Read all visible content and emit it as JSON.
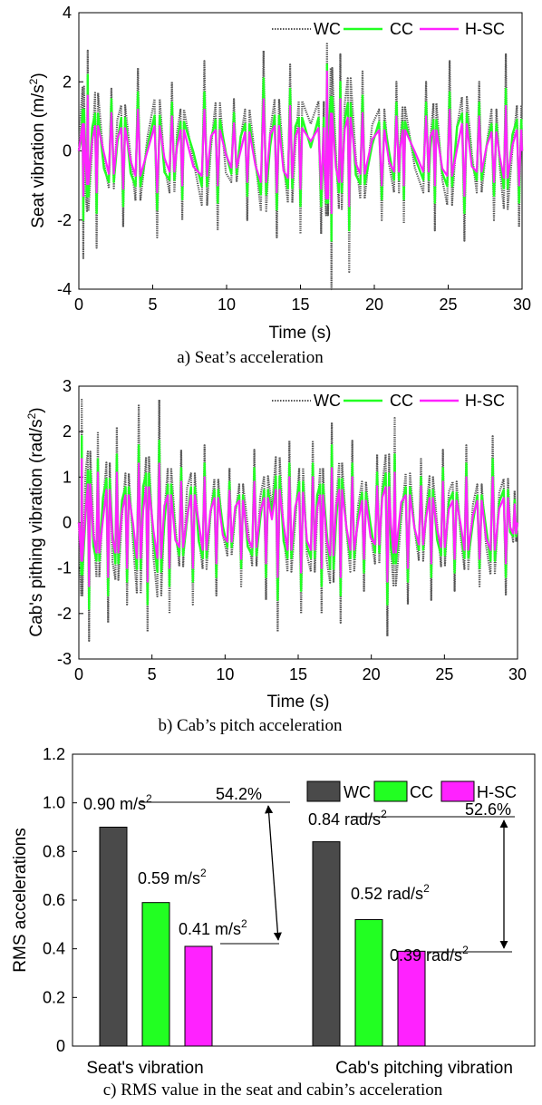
{
  "legend": [
    "WC",
    "CC",
    "H-SC"
  ],
  "colors": {
    "WC": "#555555",
    "CC": "#22ff22",
    "H-SC": "#ff22ff",
    "bar_WC": "#4a4a4a"
  },
  "chart_data": [
    {
      "type": "line",
      "caption": "a) Seat’s acceleration",
      "xlabel": "Time (s)",
      "ylabel": "Seat vibration (m/s",
      "ylabel_sup": "2",
      "ylabel_close": ")",
      "xlim": [
        0,
        30
      ],
      "ylim": [
        -4,
        4
      ],
      "xticks": [
        "0",
        "5",
        "10",
        "15",
        "20",
        "25",
        "30"
      ],
      "yticks": [
        "-4",
        "-2",
        "0",
        "2",
        "4"
      ],
      "series": [
        {
          "name": "WC",
          "peaks": [
            [
              0.3,
              -3.1
            ],
            [
              0.6,
              2.9
            ],
            [
              1.2,
              -2.8
            ],
            [
              2.2,
              1.8
            ],
            [
              3.0,
              -2.2
            ],
            [
              4.0,
              2.4
            ],
            [
              5.3,
              -2.5
            ],
            [
              6.3,
              2.0
            ],
            [
              7.0,
              -2.0
            ],
            [
              8.5,
              2.6
            ],
            [
              9.4,
              -2.3
            ],
            [
              10.5,
              1.5
            ],
            [
              11.4,
              -2.0
            ],
            [
              12.5,
              2.9
            ],
            [
              13.4,
              -2.5
            ],
            [
              14.3,
              2.5
            ],
            [
              15.0,
              -2.4
            ],
            [
              16.4,
              -2.4
            ],
            [
              16.8,
              3.1
            ],
            [
              17.1,
              -4.0
            ],
            [
              17.7,
              2.8
            ],
            [
              18.3,
              -3.5
            ],
            [
              19.2,
              2.3
            ],
            [
              20.5,
              -2.0
            ],
            [
              21.5,
              2.0
            ],
            [
              22.0,
              -2.1
            ],
            [
              23.5,
              2.0
            ],
            [
              24.1,
              -2.3
            ],
            [
              25.1,
              2.6
            ],
            [
              26.1,
              -2.6
            ],
            [
              27.1,
              2.0
            ],
            [
              28.1,
              -2.0
            ],
            [
              28.9,
              2.8
            ],
            [
              29.8,
              -2.2
            ]
          ]
        },
        {
          "name": "CC",
          "peaks": [
            [
              0.3,
              -2.0
            ],
            [
              0.6,
              2.2
            ],
            [
              1.2,
              -1.8
            ],
            [
              2.2,
              1.5
            ],
            [
              3.0,
              -1.6
            ],
            [
              4.0,
              1.7
            ],
            [
              5.3,
              -1.7
            ],
            [
              6.3,
              1.4
            ],
            [
              7.0,
              -1.4
            ],
            [
              8.5,
              1.7
            ],
            [
              9.4,
              -1.5
            ],
            [
              10.5,
              1.1
            ],
            [
              11.4,
              -1.3
            ],
            [
              12.5,
              2.1
            ],
            [
              13.4,
              -1.7
            ],
            [
              14.3,
              1.8
            ],
            [
              15.0,
              -1.6
            ],
            [
              16.4,
              -1.6
            ],
            [
              16.8,
              2.5
            ],
            [
              17.1,
              -2.6
            ],
            [
              17.7,
              2.0
            ],
            [
              18.3,
              -2.3
            ],
            [
              19.2,
              1.6
            ],
            [
              20.5,
              -1.4
            ],
            [
              21.5,
              1.4
            ],
            [
              22.0,
              -1.4
            ],
            [
              23.5,
              1.4
            ],
            [
              24.1,
              -1.5
            ],
            [
              25.1,
              1.7
            ],
            [
              26.1,
              -1.8
            ],
            [
              27.1,
              1.4
            ],
            [
              28.1,
              -1.3
            ],
            [
              28.9,
              1.8
            ],
            [
              29.8,
              -1.5
            ]
          ]
        },
        {
          "name": "H-SC",
          "peaks": [
            [
              0.3,
              -1.3
            ],
            [
              0.6,
              1.6
            ],
            [
              1.2,
              -1.2
            ],
            [
              2.2,
              1.1
            ],
            [
              3.0,
              -1.1
            ],
            [
              4.0,
              1.2
            ],
            [
              5.3,
              -1.2
            ],
            [
              6.3,
              1.0
            ],
            [
              7.0,
              -1.0
            ],
            [
              8.5,
              1.2
            ],
            [
              9.4,
              -1.0
            ],
            [
              10.5,
              0.8
            ],
            [
              11.4,
              -0.9
            ],
            [
              12.5,
              1.5
            ],
            [
              13.4,
              -1.2
            ],
            [
              14.3,
              1.3
            ],
            [
              15.0,
              -1.1
            ],
            [
              16.4,
              -1.1
            ],
            [
              16.8,
              2.3
            ],
            [
              17.1,
              -1.8
            ],
            [
              17.7,
              1.5
            ],
            [
              18.3,
              -1.6
            ],
            [
              19.2,
              1.1
            ],
            [
              20.5,
              -1.0
            ],
            [
              21.5,
              1.0
            ],
            [
              22.0,
              -1.0
            ],
            [
              23.5,
              1.0
            ],
            [
              24.1,
              -1.0
            ],
            [
              25.1,
              1.2
            ],
            [
              26.1,
              -1.3
            ],
            [
              27.1,
              1.0
            ],
            [
              28.1,
              -0.9
            ],
            [
              28.9,
              1.3
            ],
            [
              29.8,
              -1.0
            ]
          ]
        }
      ]
    },
    {
      "type": "line",
      "caption": "b) Cab’s pitch acceleration",
      "xlabel": "Time (s)",
      "ylabel": "Cab's pithing vibration (rad/s",
      "ylabel_sup": "2",
      "ylabel_close": ")",
      "xlim": [
        0,
        30
      ],
      "ylim": [
        -3,
        3
      ],
      "xticks": [
        "0",
        "5",
        "10",
        "15",
        "20",
        "25",
        "30"
      ],
      "yticks": [
        "-3",
        "-2",
        "-1",
        "0",
        "1",
        "2",
        "3"
      ],
      "series": [
        {
          "name": "WC",
          "peaks": [
            [
              0.2,
              2.7
            ],
            [
              0.7,
              -2.6
            ],
            [
              1.3,
              2.0
            ],
            [
              2.0,
              -2.2
            ],
            [
              2.6,
              2.1
            ],
            [
              3.3,
              -1.8
            ],
            [
              4.1,
              2.6
            ],
            [
              4.7,
              -2.4
            ],
            [
              5.5,
              2.7
            ],
            [
              6.2,
              -2.0
            ],
            [
              7.0,
              1.6
            ],
            [
              7.8,
              -1.8
            ],
            [
              8.6,
              1.7
            ],
            [
              9.4,
              -1.6
            ],
            [
              10.3,
              1.2
            ],
            [
              11.1,
              -1.4
            ],
            [
              12.0,
              1.6
            ],
            [
              12.8,
              -1.7
            ],
            [
              13.6,
              -2.4
            ],
            [
              14.4,
              1.8
            ],
            [
              15.2,
              -2.0
            ],
            [
              16.0,
              1.8
            ],
            [
              16.6,
              -2.0
            ],
            [
              17.3,
              2.2
            ],
            [
              17.9,
              -2.2
            ],
            [
              18.7,
              1.8
            ],
            [
              19.5,
              -1.5
            ],
            [
              20.4,
              1.5
            ],
            [
              21.1,
              -2.5
            ],
            [
              21.6,
              2.3
            ],
            [
              22.5,
              -1.8
            ],
            [
              23.4,
              1.4
            ],
            [
              24.1,
              -1.7
            ],
            [
              24.9,
              1.6
            ],
            [
              25.7,
              -1.5
            ],
            [
              26.5,
              1.7
            ],
            [
              27.4,
              -1.4
            ],
            [
              28.3,
              1.9
            ],
            [
              29.2,
              -1.6
            ],
            [
              29.8,
              0.7
            ]
          ]
        },
        {
          "name": "CC",
          "peaks": [
            [
              0.2,
              1.9
            ],
            [
              0.7,
              -1.9
            ],
            [
              1.3,
              1.4
            ],
            [
              2.0,
              -1.6
            ],
            [
              2.6,
              1.5
            ],
            [
              3.3,
              -1.3
            ],
            [
              4.1,
              1.7
            ],
            [
              4.7,
              -1.8
            ],
            [
              5.5,
              1.8
            ],
            [
              6.2,
              -1.4
            ],
            [
              7.0,
              1.2
            ],
            [
              7.8,
              -1.3
            ],
            [
              8.6,
              1.3
            ],
            [
              9.4,
              -1.2
            ],
            [
              10.3,
              0.9
            ],
            [
              11.1,
              -1.0
            ],
            [
              12.0,
              1.2
            ],
            [
              12.8,
              -1.2
            ],
            [
              13.6,
              -1.7
            ],
            [
              14.4,
              1.3
            ],
            [
              15.2,
              -1.5
            ],
            [
              16.0,
              1.3
            ],
            [
              16.6,
              -1.4
            ],
            [
              17.3,
              1.7
            ],
            [
              17.9,
              -1.6
            ],
            [
              18.7,
              1.3
            ],
            [
              19.5,
              -1.1
            ],
            [
              20.4,
              1.1
            ],
            [
              21.1,
              -1.8
            ],
            [
              21.6,
              1.5
            ],
            [
              22.5,
              -1.3
            ],
            [
              23.4,
              1.0
            ],
            [
              24.1,
              -1.2
            ],
            [
              24.9,
              1.2
            ],
            [
              25.7,
              -1.1
            ],
            [
              26.5,
              1.3
            ],
            [
              27.4,
              -1.0
            ],
            [
              28.3,
              1.4
            ],
            [
              29.2,
              -1.2
            ],
            [
              29.8,
              0.5
            ]
          ]
        },
        {
          "name": "H-SC",
          "peaks": [
            [
              0.2,
              1.4
            ],
            [
              0.7,
              -1.4
            ],
            [
              1.3,
              1.1
            ],
            [
              2.0,
              -1.2
            ],
            [
              2.6,
              1.1
            ],
            [
              3.3,
              -1.0
            ],
            [
              4.1,
              1.3
            ],
            [
              4.7,
              -1.3
            ],
            [
              5.5,
              1.3
            ],
            [
              6.2,
              -1.0
            ],
            [
              7.0,
              0.9
            ],
            [
              7.8,
              -1.0
            ],
            [
              8.6,
              1.0
            ],
            [
              9.4,
              -0.9
            ],
            [
              10.3,
              0.7
            ],
            [
              11.1,
              -0.8
            ],
            [
              12.0,
              0.9
            ],
            [
              12.8,
              -0.9
            ],
            [
              13.6,
              -1.2
            ],
            [
              14.4,
              1.0
            ],
            [
              15.2,
              -1.1
            ],
            [
              16.0,
              1.0
            ],
            [
              16.6,
              -1.0
            ],
            [
              17.3,
              1.2
            ],
            [
              17.9,
              -1.2
            ],
            [
              18.7,
              1.0
            ],
            [
              19.5,
              -0.8
            ],
            [
              20.4,
              0.8
            ],
            [
              21.1,
              -1.3
            ],
            [
              21.6,
              1.1
            ],
            [
              22.5,
              -1.0
            ],
            [
              23.4,
              0.8
            ],
            [
              24.1,
              -0.9
            ],
            [
              24.9,
              0.9
            ],
            [
              25.7,
              -0.8
            ],
            [
              26.5,
              1.0
            ],
            [
              27.4,
              -0.8
            ],
            [
              28.3,
              1.0
            ],
            [
              29.2,
              -0.9
            ],
            [
              29.8,
              0.4
            ]
          ]
        }
      ]
    },
    {
      "type": "bar",
      "caption": "c) RMS value in the seat and cabin’s acceleration",
      "ylabel": "RMS accelerations",
      "ylim": [
        0,
        1.2
      ],
      "yticks": [
        "0",
        "0.2",
        "0.4",
        "0.6",
        "0.8",
        "1.0",
        "1.2"
      ],
      "categories": [
        "Seat's vibration",
        "Cab's pitching vibration"
      ],
      "series": [
        {
          "name": "WC",
          "values": [
            0.9,
            0.84
          ]
        },
        {
          "name": "CC",
          "values": [
            0.59,
            0.52
          ]
        },
        {
          "name": "H-SC",
          "values": [
            0.41,
            0.39
          ]
        }
      ],
      "value_labels": [
        [
          "0.90 m/s",
          "0.59 m/s",
          "0.41 m/s"
        ],
        [
          "0.84 rad/s",
          "0.52 rad/s",
          "0.39 rad/s"
        ]
      ],
      "unit_sup": "2",
      "annotations": [
        "54.2%",
        "52.6%"
      ]
    }
  ]
}
